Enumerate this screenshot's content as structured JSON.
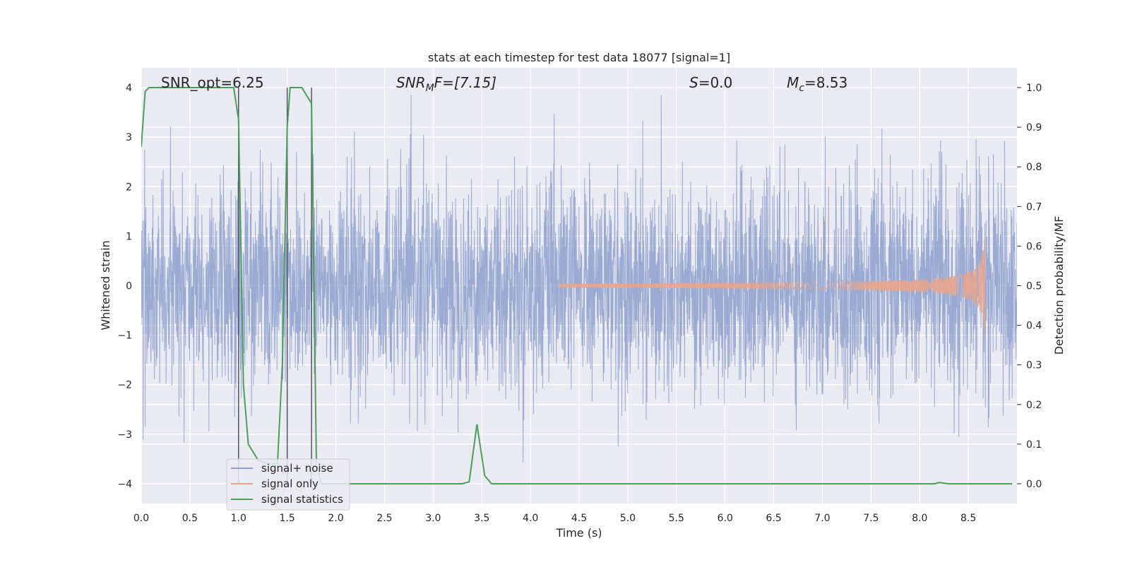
{
  "chart_data": {
    "type": "line",
    "title": "stats at each timestep for test data 18077 [signal=1]",
    "xlabel": "Time (s)",
    "ylabel": "Whitened strain",
    "y2label": "Detection probability/MF",
    "xlim": [
      0,
      9.0
    ],
    "ylim": [
      -4.4,
      4.4
    ],
    "y2lim": [
      -0.05,
      1.05
    ],
    "xticks": [
      "0.0",
      "0.5",
      "1.0",
      "1.5",
      "2.0",
      "2.5",
      "3.0",
      "3.5",
      "4.0",
      "4.5",
      "5.0",
      "5.5",
      "6.0",
      "6.5",
      "7.0",
      "7.5",
      "8.0",
      "8.5"
    ],
    "yticks": [
      "4",
      "3",
      "2",
      "1",
      "0",
      "−1",
      "−2",
      "−3",
      "−4"
    ],
    "y2ticks": [
      "1.0",
      "0.9",
      "0.8",
      "0.7",
      "0.6",
      "0.5",
      "0.4",
      "0.3",
      "0.2",
      "0.1",
      "0.0"
    ],
    "grid": true,
    "legend_position": "lower-left",
    "annotations": {
      "snr_opt": "SNR_opt=6.25",
      "snr_mf_prefix": "SNR",
      "snr_mf_sub": "M",
      "snr_mf_suffix": "F=[7.15]",
      "s_prefix": "S",
      "s_suffix": "=0.0",
      "mc_prefix": "M",
      "mc_sub": "c",
      "mc_suffix": "=8.53"
    },
    "vertical_markers": [
      1.0,
      1.5,
      1.75
    ],
    "series": [
      {
        "name": "signal+ noise",
        "color": "#8c9fcd",
        "axis": "left",
        "description_range": [
          -4.0,
          3.85
        ],
        "noise_seed": 18077
      },
      {
        "name": "signal only",
        "color": "#e8a58c",
        "axis": "left",
        "chirp_start": 4.3,
        "chirp_end": 8.67,
        "peak_amplitude": 1.1
      },
      {
        "name": "signal statistics",
        "color": "#4c9e59",
        "axis": "right",
        "x": [
          0.0,
          0.04,
          0.08,
          0.15,
          0.3,
          0.5,
          0.7,
          0.85,
          0.95,
          1.0,
          1.05,
          1.1,
          1.2,
          1.3,
          1.4,
          1.45,
          1.5,
          1.53,
          1.57,
          1.6,
          1.65,
          1.7,
          1.75,
          1.8,
          1.85,
          1.9,
          2.0,
          2.5,
          3.0,
          3.3,
          3.37,
          3.45,
          3.53,
          3.6,
          4.0,
          5.0,
          6.0,
          7.0,
          7.5,
          8.0,
          8.15,
          8.2,
          8.3,
          8.5,
          8.7,
          8.95
        ],
        "y": [
          0.85,
          0.99,
          1.0,
          1.0,
          1.0,
          1.0,
          1.0,
          1.0,
          1.0,
          0.92,
          0.25,
          0.1,
          0.06,
          0.05,
          0.05,
          0.3,
          0.9,
          1.0,
          1.0,
          1.0,
          1.0,
          0.98,
          0.96,
          0.05,
          0.0,
          0.0,
          0.0,
          0.0,
          0.0,
          0.0,
          0.005,
          0.15,
          0.02,
          0.0,
          0.0,
          0.0,
          0.0,
          0.0,
          0.0,
          0.0,
          0.0,
          0.003,
          0.0,
          0.0,
          0.0,
          0.0
        ]
      }
    ]
  }
}
